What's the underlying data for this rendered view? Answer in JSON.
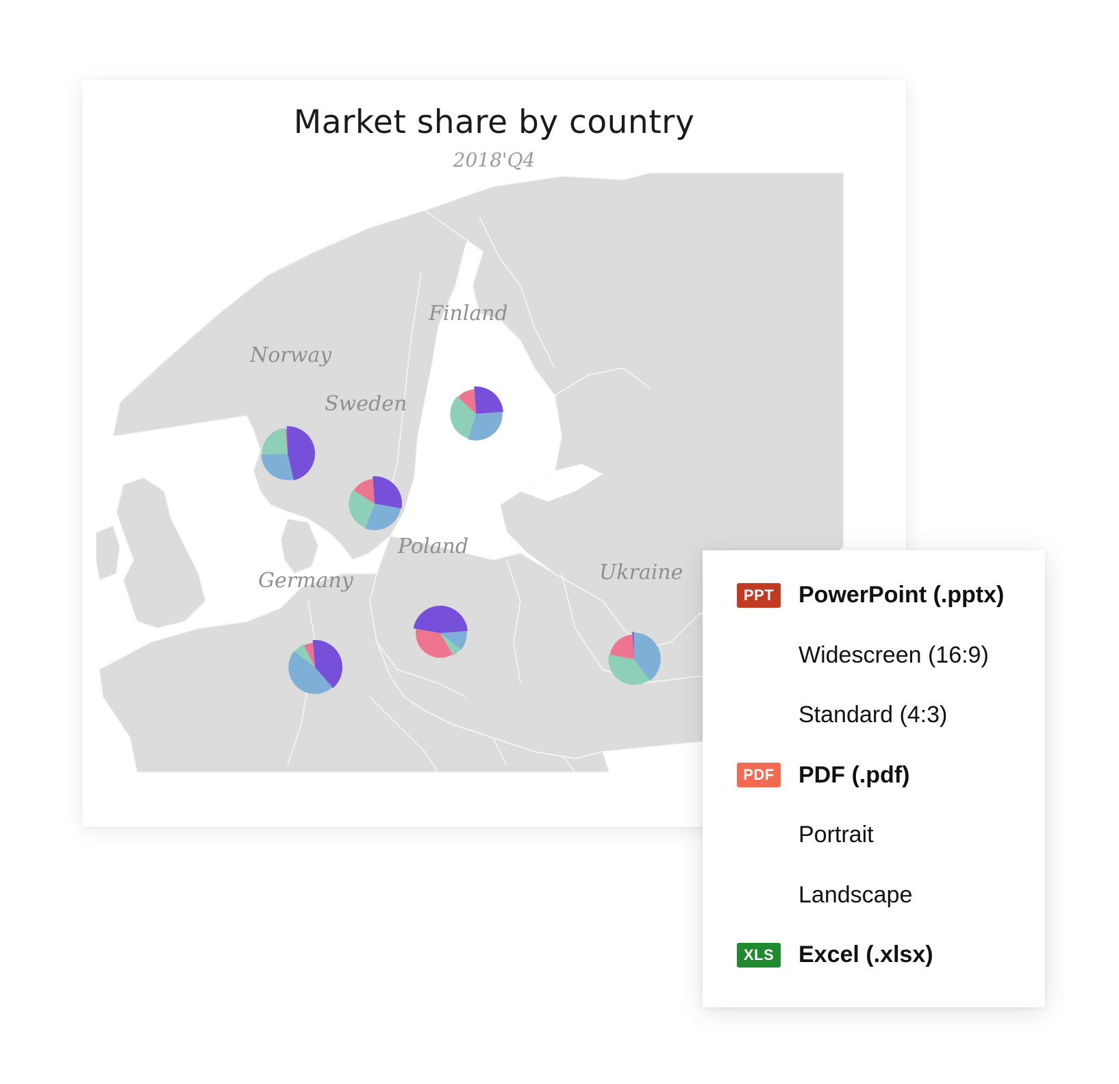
{
  "chart_card": {
    "title": "Market share by country",
    "subtitle": "2018'Q4"
  },
  "colors": {
    "map_land": "#dcdcdc",
    "map_border": "#f7f7f7",
    "purple": "#7650d8",
    "blue": "#7eafd6",
    "green": "#8ecfb8",
    "pink": "#ee7590",
    "ppt_badge": "#c13b24",
    "pdf_badge": "#f26b50",
    "xls_badge": "#1f8a2e"
  },
  "chart_data": {
    "type": "pie",
    "map": "Europe",
    "series_colors": [
      "#7650d8",
      "#7eafd6",
      "#8ecfb8",
      "#ee7590"
    ],
    "countries": [
      {
        "name": "Norway",
        "values": [
          47,
          28,
          24,
          1
        ]
      },
      {
        "name": "Sweden",
        "values": [
          29,
          28,
          28,
          15
        ]
      },
      {
        "name": "Finland",
        "values": [
          25,
          31,
          32,
          12
        ]
      },
      {
        "name": "Germany",
        "values": [
          40,
          47,
          7,
          6
        ]
      },
      {
        "name": "Poland",
        "values": [
          46,
          12,
          6,
          36
        ]
      },
      {
        "name": "Ukraine",
        "values": [
          1,
          40,
          38,
          21
        ]
      }
    ]
  },
  "export_menu": {
    "items": [
      {
        "badge": "PPT",
        "label": "PowerPoint (.pptx)",
        "badge_color": "#c13b24",
        "primary": true
      },
      {
        "badge": "",
        "label": "Widescreen (16:9)",
        "primary": false
      },
      {
        "badge": "",
        "label": "Standard (4:3)",
        "primary": false
      },
      {
        "badge": "PDF",
        "label": "PDF (.pdf)",
        "badge_color": "#f26b50",
        "primary": true
      },
      {
        "badge": "",
        "label": "Portrait",
        "primary": false
      },
      {
        "badge": "",
        "label": "Landscape",
        "primary": false
      },
      {
        "badge": "XLS",
        "label": "Excel (.xlsx)",
        "badge_color": "#1f8a2e",
        "primary": true
      }
    ]
  }
}
